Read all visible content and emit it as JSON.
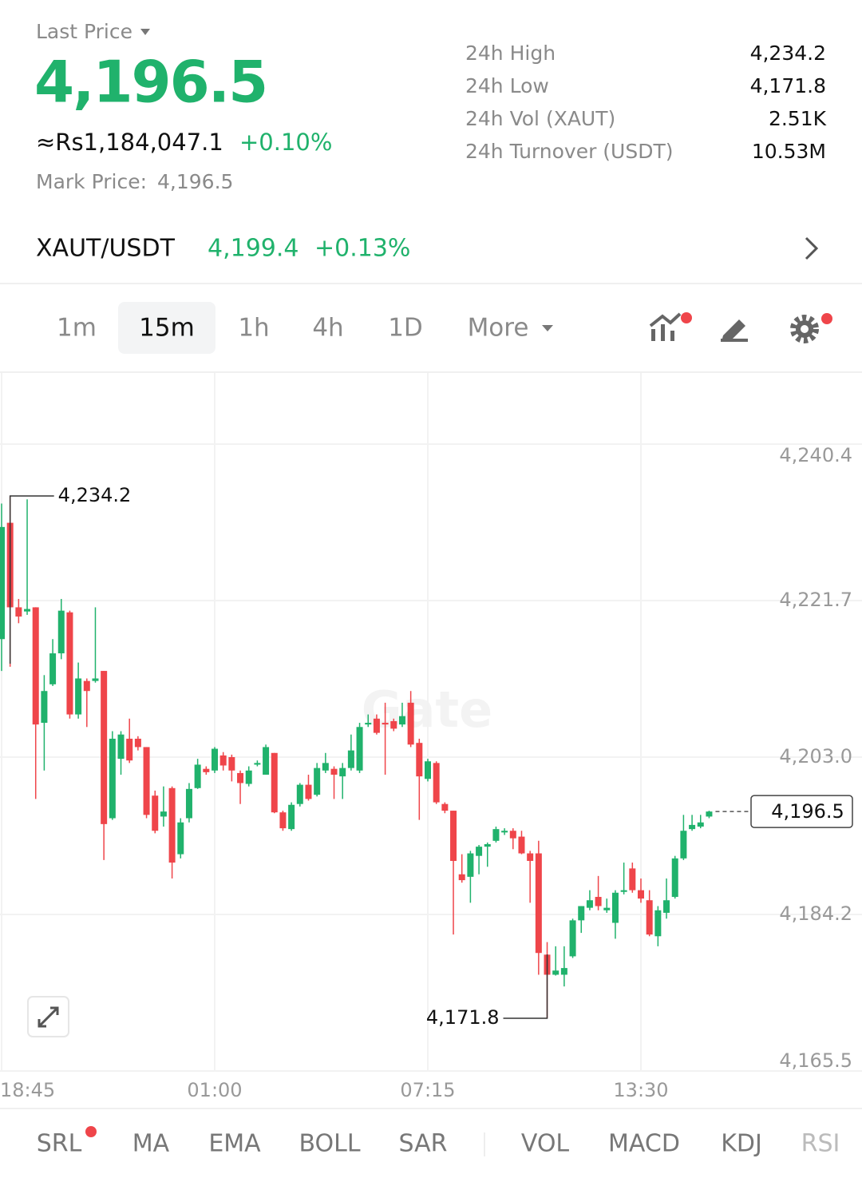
{
  "header": {
    "label": "Last Price",
    "price": "4,196.5",
    "converted": "≈Rs1,184,047.1",
    "change": "+0.10%",
    "mark_label": "Mark Price:",
    "mark_price": "4,196.5"
  },
  "stats": [
    {
      "label": "24h High",
      "value": "4,234.2"
    },
    {
      "label": "24h Low",
      "value": "4,171.8"
    },
    {
      "label": "24h Vol (XAUT)",
      "value": "2.51K"
    },
    {
      "label": "24h Turnover (USDT)",
      "value": "10.53M"
    }
  ],
  "pair": {
    "name": "XAUT/USDT",
    "price": "4,199.4",
    "change": "+0.13%"
  },
  "timeframes": [
    {
      "label": "1m"
    },
    {
      "label": "15m",
      "active": true
    },
    {
      "label": "1h"
    },
    {
      "label": "4h"
    },
    {
      "label": "1D"
    },
    {
      "label": "More"
    }
  ],
  "indicators": [
    "SRL",
    "MA",
    "EMA",
    "BOLL",
    "SAR",
    "VOL",
    "MACD",
    "KDJ",
    "RSI"
  ],
  "watermark": "Gate",
  "chart_data": {
    "type": "candlestick",
    "categories": [
      "18:45",
      null,
      null,
      null,
      null,
      null,
      null,
      null,
      null,
      null,
      null,
      null,
      null,
      null,
      null,
      null,
      null,
      null,
      null,
      null,
      null,
      null,
      null,
      null,
      null,
      "01:00",
      null,
      null,
      null,
      null,
      null,
      null,
      null,
      null,
      null,
      null,
      null,
      null,
      null,
      null,
      null,
      null,
      null,
      null,
      null,
      null,
      null,
      null,
      null,
      null,
      "07:15",
      null,
      null,
      null,
      null,
      null,
      null,
      null,
      null,
      null,
      null,
      null,
      null,
      null,
      null,
      null,
      null,
      null,
      null,
      null,
      null,
      null,
      null,
      null,
      null,
      "13:30",
      null,
      null,
      null,
      null,
      null,
      null,
      null,
      null
    ],
    "open": [
      4217.1,
      4231.0,
      4220.9,
      4220.4,
      4220.9,
      4207.1,
      4211.7,
      4215.4,
      4220.3,
      4208.1,
      4212.1,
      4212.1,
      4213.3,
      4195.7,
      4202.8,
      4205.2,
      4205.2,
      4204.2,
      4198.4,
      4195.9,
      4199.3,
      4191.4,
      4195.7,
      4199.3,
      4201.6,
      4201.4,
      4203.2,
      4203.0,
      4201.1,
      4199.8,
      4202.1,
      4200.9,
      4203.5,
      4196.4,
      4194.4,
      4197.4,
      4199.7,
      4198.5,
      4201.4,
      4201.6,
      4200.7,
      4201.7,
      4201.4,
      4206.9,
      4207.6,
      4207.1,
      4207.3,
      4206.9,
      4209.5,
      4204.7,
      4200.4,
      4202.3,
      4197.4,
      4196.6,
      4189.0,
      4188.7,
      4191.2,
      4192.3,
      4193.0,
      4194.0,
      4194.2,
      4193.5,
      4191.5,
      4191.5,
      4179.4,
      4177.0,
      4177.0,
      4179.2,
      4183.5,
      4185.0,
      4186.3,
      4184.7,
      4183.2,
      4186.9,
      4189.7,
      4187.1,
      4185.9,
      4181.6,
      4184.4,
      4186.3,
      4190.9,
      4194.4,
      4194.7,
      4195.9
    ],
    "high": [
      4233.3,
      4234.2,
      4221.9,
      4233.8,
      4220.9,
      4212.8,
      4217.1,
      4221.9,
      4220.5,
      4214.3,
      4212.4,
      4220.9,
      4213.3,
      4206.1,
      4206.1,
      4207.6,
      4205.5,
      4204.2,
      4199.0,
      4199.5,
      4199.5,
      4195.7,
      4199.9,
      4202.8,
      4201.9,
      4204.2,
      4203.6,
      4203.3,
      4201.4,
      4201.9,
      4202.6,
      4204.5,
      4203.5,
      4196.6,
      4197.6,
      4199.9,
      4200.9,
      4202.3,
      4203.5,
      4201.9,
      4202.3,
      4205.7,
      4207.1,
      4208.1,
      4208.1,
      4209.5,
      4207.6,
      4209.5,
      4210.9,
      4205.2,
      4202.8,
      4202.5,
      4197.6,
      4196.6,
      4191.4,
      4191.8,
      4192.5,
      4192.8,
      4194.7,
      4194.5,
      4194.5,
      4194.2,
      4191.8,
      4193.0,
      4180.9,
      4180.4,
      4180.4,
      4183.7,
      4185.2,
      4187.1,
      4188.8,
      4186.1,
      4187.1,
      4190.4,
      4190.4,
      4188.5,
      4187.1,
      4185.2,
      4188.5,
      4191.2,
      4196.1,
      4196.1,
      4196.1,
      4196.6
    ],
    "low": [
      4213.3,
      4213.8,
      4219.0,
      4220.0,
      4198.0,
      4201.4,
      4211.5,
      4214.7,
      4207.6,
      4207.6,
      4206.6,
      4211.9,
      4190.7,
      4195.5,
      4200.9,
      4202.3,
      4203.8,
      4195.7,
      4193.9,
      4194.7,
      4188.5,
      4190.9,
      4195.2,
      4199.2,
      4200.9,
      4201.1,
      4201.4,
      4200.1,
      4197.4,
      4199.5,
      4201.9,
      4200.9,
      4196.3,
      4194.2,
      4194.2,
      4197.1,
      4197.8,
      4198.3,
      4201.1,
      4198.0,
      4198.0,
      4201.4,
      4201.1,
      4206.6,
      4205.7,
      4200.9,
      4206.1,
      4206.6,
      4204.2,
      4195.5,
      4200.1,
      4197.4,
      4196.3,
      4181.8,
      4188.0,
      4185.6,
      4189.0,
      4189.9,
      4192.8,
      4193.7,
      4192.0,
      4191.4,
      4185.6,
      4177.0,
      4171.8,
      4176.9,
      4175.6,
      4179.0,
      4182.0,
      4184.7,
      4184.7,
      4184.4,
      4181.3,
      4186.6,
      4186.8,
      4185.6,
      4181.6,
      4180.4,
      4183.7,
      4186.1,
      4190.7,
      4194.2,
      4194.5,
      4195.7
    ],
    "close": [
      4230.5,
      4220.9,
      4219.8,
      4220.7,
      4206.9,
      4210.9,
      4215.4,
      4220.5,
      4208.1,
      4212.4,
      4210.9,
      4212.4,
      4195.0,
      4205.2,
      4205.7,
      4202.6,
      4204.2,
      4196.1,
      4194.2,
      4196.5,
      4190.4,
      4195.2,
      4199.2,
      4202.1,
      4201.2,
      4204.0,
      4202.0,
      4201.4,
      4199.9,
      4201.4,
      4202.3,
      4204.2,
      4196.4,
      4194.5,
      4197.3,
      4199.7,
      4198.0,
      4201.7,
      4202.3,
      4200.9,
      4201.7,
      4203.8,
      4206.6,
      4207.1,
      4205.9,
      4206.9,
      4206.4,
      4207.9,
      4204.5,
      4200.7,
      4202.5,
      4197.6,
      4196.6,
      4190.6,
      4188.3,
      4191.5,
      4192.3,
      4192.6,
      4194.4,
      4194.2,
      4193.3,
      4191.5,
      4190.6,
      4179.6,
      4177.0,
      4177.5,
      4177.8,
      4183.5,
      4185.2,
      4185.9,
      4185.2,
      4185.0,
      4186.8,
      4187.1,
      4187.1,
      4186.1,
      4181.8,
      4184.7,
      4185.9,
      4190.9,
      4194.2,
      4194.9,
      4195.2,
      4196.5
    ],
    "up_color": "#20b26c",
    "down_color": "#ef454a",
    "ylim": [
      4165.5,
      4248.9
    ],
    "yticks": [
      {
        "value": 4240.4,
        "label": "4,240.4"
      },
      {
        "value": 4221.7,
        "label": "4,221.7"
      },
      {
        "value": 4203.0,
        "label": "4,203.0"
      },
      {
        "value": 4184.2,
        "label": "4,184.2"
      },
      {
        "value": 4165.5,
        "label": "4,165.5"
      }
    ],
    "grid": true,
    "high_marker": {
      "value": 4234.2,
      "label": "4,234.2"
    },
    "low_marker": {
      "value": 4171.8,
      "label": "4,171.8"
    },
    "last_price": {
      "value": 4196.5,
      "label": "4,196.5"
    }
  }
}
